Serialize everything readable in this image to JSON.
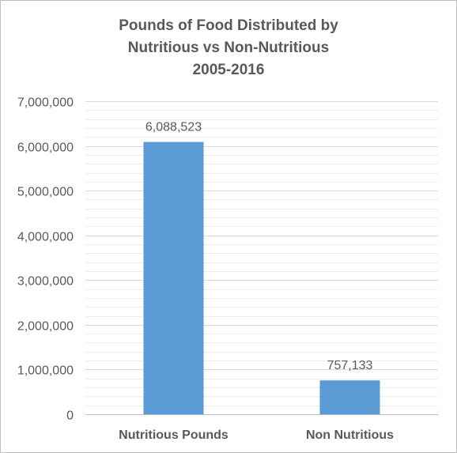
{
  "chart_data": {
    "type": "bar",
    "title_lines": [
      "Pounds of Food Distributed by",
      "Nutritious vs Non-Nutritious",
      "2005-2016"
    ],
    "categories": [
      "Nutritious Pounds",
      "Non Nutritious"
    ],
    "series": [
      {
        "values": [
          6088523,
          757133
        ],
        "color": "#5b9bd5"
      }
    ],
    "data_labels": [
      "6,088,523",
      "757,133"
    ],
    "y_ticks": [
      0,
      1000000,
      2000000,
      3000000,
      4000000,
      5000000,
      6000000,
      7000000
    ],
    "y_tick_labels": [
      "0",
      "1,000,000",
      "2,000,000",
      "3,000,000",
      "4,000,000",
      "5,000,000",
      "6,000,000",
      "7,000,000"
    ],
    "ylim": [
      0,
      7000000
    ],
    "minor_grid_step": 200000,
    "grid": true,
    "legend": "none",
    "xlabel": "",
    "ylabel": "",
    "colors": {
      "bar": "#5b9bd5",
      "text": "#595959",
      "grid": "#d9d9d9",
      "axis": "#bfbfbf"
    }
  }
}
